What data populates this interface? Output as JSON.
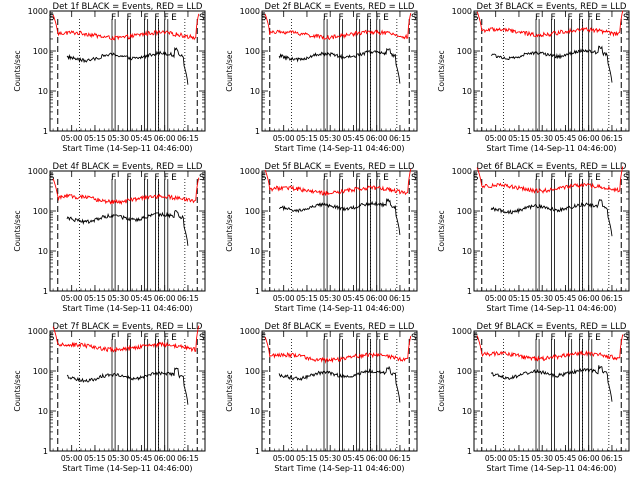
{
  "chart_data": [
    {
      "type": "line",
      "title": "Det 1f BLACK = Events, RED = LLD",
      "xlabel": "Start Time (14-Sep-11 04:46:00)",
      "ylabel": "Counts/sec",
      "yscale": "log",
      "ylim": [
        1,
        1000
      ],
      "yticks": [
        "1",
        "10",
        "100",
        "1000"
      ],
      "xticks": [
        "05:00",
        "05:15",
        "05:30",
        "05:45",
        "06:00",
        "06:15"
      ],
      "x_minutes": [
        14,
        29,
        44,
        59,
        74,
        89
      ],
      "x_range_minutes": [
        0,
        100
      ],
      "lld_level": 250,
      "events_level": 80,
      "flags": [
        "S",
        "F",
        "F",
        "F",
        "F",
        "F",
        "E",
        "S"
      ],
      "flag_minutes": [
        1,
        41,
        51,
        62,
        69,
        75,
        80,
        98
      ],
      "series": []
    },
    {
      "type": "line",
      "title": "Det 2f BLACK = Events, RED = LLD",
      "xlabel": "Start Time (14-Sep-11 04:46:00)",
      "ylabel": "Counts/sec",
      "yscale": "log",
      "ylim": [
        1,
        1000
      ],
      "yticks": [
        "1",
        "10",
        "100",
        "1000"
      ],
      "xticks": [
        "05:00",
        "05:15",
        "05:30",
        "05:45",
        "06:00",
        "06:15"
      ],
      "x_minutes": [
        14,
        29,
        44,
        59,
        74,
        89
      ],
      "x_range_minutes": [
        0,
        100
      ],
      "lld_level": 260,
      "events_level": 85,
      "flags": [
        "S",
        "F",
        "F",
        "F",
        "F",
        "F",
        "E",
        "S"
      ],
      "flag_minutes": [
        1,
        41,
        51,
        62,
        69,
        75,
        80,
        98
      ],
      "series": []
    },
    {
      "type": "line",
      "title": "Det 3f BLACK = Events, RED = LLD",
      "xlabel": "Start Time (14-Sep-11 04:46:00)",
      "ylabel": "Counts/sec",
      "yscale": "log",
      "ylim": [
        1,
        1000
      ],
      "yticks": [
        "1",
        "10",
        "100",
        "1000"
      ],
      "xticks": [
        "05:00",
        "05:15",
        "05:30",
        "05:45",
        "06:00",
        "06:15"
      ],
      "x_minutes": [
        14,
        29,
        44,
        59,
        74,
        89
      ],
      "x_range_minutes": [
        0,
        100
      ],
      "lld_level": 300,
      "events_level": 90,
      "flags": [
        "S",
        "F",
        "F",
        "F",
        "F",
        "F",
        "E",
        "S"
      ],
      "flag_minutes": [
        1,
        41,
        51,
        62,
        69,
        75,
        80,
        98
      ],
      "series": []
    },
    {
      "type": "line",
      "title": "Det 4f BLACK = Events, RED = LLD",
      "xlabel": "Start Time (14-Sep-11 04:46:00)",
      "ylabel": "Counts/sec",
      "yscale": "log",
      "ylim": [
        1,
        1000
      ],
      "yticks": [
        "1",
        "10",
        "100",
        "1000"
      ],
      "xticks": [
        "05:00",
        "05:15",
        "05:30",
        "05:45",
        "06:00",
        "06:15"
      ],
      "x_minutes": [
        14,
        29,
        44,
        59,
        74,
        89
      ],
      "x_range_minutes": [
        0,
        100
      ],
      "lld_level": 200,
      "events_level": 75,
      "flags": [
        "S",
        "F",
        "F",
        "F",
        "F",
        "F",
        "E",
        "S"
      ],
      "flag_minutes": [
        1,
        41,
        51,
        62,
        69,
        75,
        80,
        98
      ],
      "series": []
    },
    {
      "type": "line",
      "title": "Det 5f BLACK = Events, RED = LLD",
      "xlabel": "Start Time (14-Sep-11 04:46:00)",
      "ylabel": "Counts/sec",
      "yscale": "log",
      "ylim": [
        1,
        1000
      ],
      "yticks": [
        "1",
        "10",
        "100",
        "1000"
      ],
      "xticks": [
        "05:00",
        "05:15",
        "05:30",
        "05:45",
        "06:00",
        "06:15"
      ],
      "x_minutes": [
        14,
        29,
        44,
        59,
        74,
        89
      ],
      "x_range_minutes": [
        0,
        100
      ],
      "lld_level": 330,
      "events_level": 140,
      "flags": [
        "S",
        "F",
        "F",
        "F",
        "F",
        "F",
        "E",
        "S"
      ],
      "flag_minutes": [
        1,
        41,
        51,
        62,
        69,
        75,
        80,
        98
      ],
      "series": []
    },
    {
      "type": "line",
      "title": "Det 6f BLACK = Events, RED = LLD",
      "xlabel": "Start Time (14-Sep-11 04:46:00)",
      "ylabel": "Counts/sec",
      "yscale": "log",
      "ylim": [
        1,
        1000
      ],
      "yticks": [
        "1",
        "10",
        "100",
        "1000"
      ],
      "xticks": [
        "05:00",
        "05:15",
        "05:30",
        "05:45",
        "06:00",
        "06:15"
      ],
      "x_minutes": [
        14,
        29,
        44,
        59,
        74,
        89
      ],
      "x_range_minutes": [
        0,
        100
      ],
      "lld_level": 380,
      "events_level": 130,
      "flags": [
        "S",
        "F",
        "F",
        "F",
        "F",
        "F",
        "E",
        "S"
      ],
      "flag_minutes": [
        1,
        41,
        51,
        62,
        69,
        75,
        80,
        98
      ],
      "series": []
    },
    {
      "type": "line",
      "title": "Det 7f BLACK = Events, RED = LLD",
      "xlabel": "Start Time (14-Sep-11 04:46:00)",
      "ylabel": "Counts/sec",
      "yscale": "log",
      "ylim": [
        1,
        1000
      ],
      "yticks": [
        "1",
        "10",
        "100",
        "1000"
      ],
      "xticks": [
        "05:00",
        "05:15",
        "05:30",
        "05:45",
        "06:00",
        "06:15"
      ],
      "x_minutes": [
        14,
        29,
        44,
        59,
        74,
        89
      ],
      "x_range_minutes": [
        0,
        100
      ],
      "lld_level": 400,
      "events_level": 80,
      "flags": [
        "S",
        "F",
        "F",
        "F",
        "F",
        "F",
        "E",
        "S"
      ],
      "flag_minutes": [
        1,
        41,
        51,
        62,
        69,
        75,
        80,
        98
      ],
      "series": []
    },
    {
      "type": "line",
      "title": "Det 8f BLACK = Events, RED = LLD",
      "xlabel": "Start Time (14-Sep-11 04:46:00)",
      "ylabel": "Counts/sec",
      "yscale": "log",
      "ylim": [
        1,
        1000
      ],
      "yticks": [
        "1",
        "10",
        "100",
        "1000"
      ],
      "xticks": [
        "05:00",
        "05:15",
        "05:30",
        "05:45",
        "06:00",
        "06:15"
      ],
      "x_minutes": [
        14,
        29,
        44,
        59,
        74,
        89
      ],
      "x_range_minutes": [
        0,
        100
      ],
      "lld_level": 220,
      "events_level": 90,
      "flags": [
        "S",
        "F",
        "F",
        "F",
        "F",
        "F",
        "E",
        "S"
      ],
      "flag_minutes": [
        1,
        41,
        51,
        62,
        69,
        75,
        80,
        98
      ],
      "series": []
    },
    {
      "type": "line",
      "title": "Det 9f BLACK = Events, RED = LLD",
      "xlabel": "Start Time (14-Sep-11 04:46:00)",
      "ylabel": "Counts/sec",
      "yscale": "log",
      "ylim": [
        1,
        1000
      ],
      "yticks": [
        "1",
        "10",
        "100",
        "1000"
      ],
      "xticks": [
        "05:00",
        "05:15",
        "05:30",
        "05:45",
        "06:00",
        "06:15"
      ],
      "x_minutes": [
        14,
        29,
        44,
        59,
        74,
        89
      ],
      "x_range_minutes": [
        0,
        100
      ],
      "lld_level": 240,
      "events_level": 95,
      "flags": [
        "S",
        "F",
        "F",
        "F",
        "F",
        "F",
        "E",
        "S"
      ],
      "flag_minutes": [
        1,
        41,
        51,
        62,
        69,
        75,
        80,
        98
      ],
      "series": []
    }
  ],
  "colors": {
    "events": "#000000",
    "lld": "#ff0000",
    "axis": "#000000",
    "background": "#ffffff"
  }
}
